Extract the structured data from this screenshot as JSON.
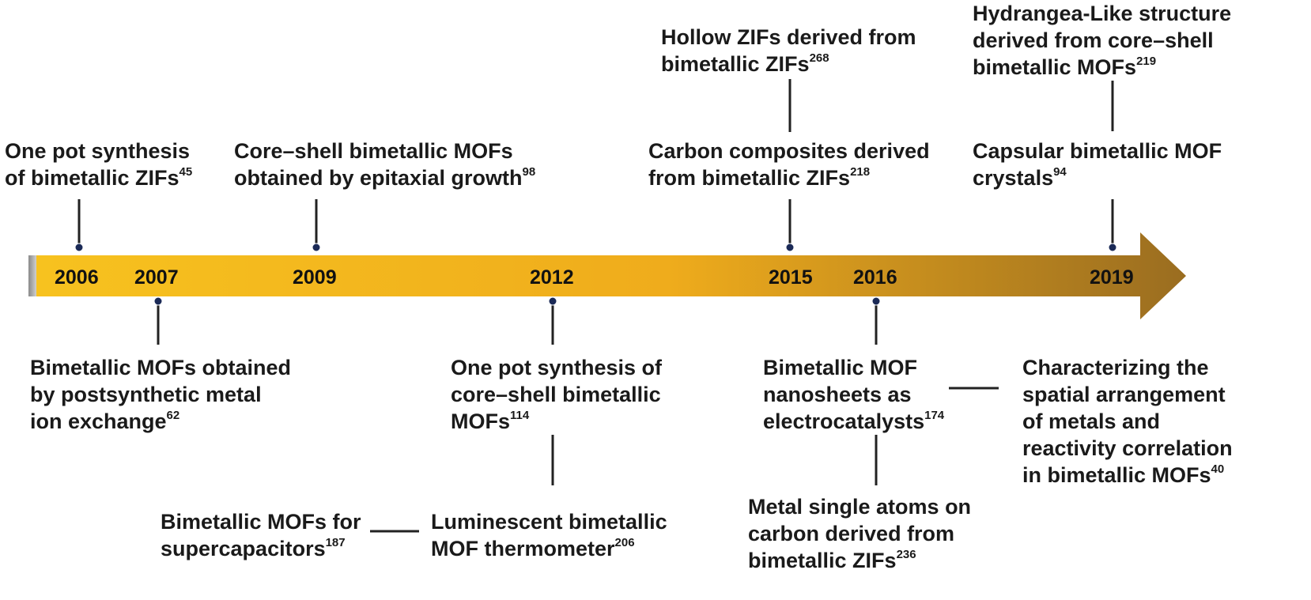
{
  "colors": {
    "arrow_start": "#f7c21f",
    "arrow_mid": "#efac1c",
    "arrow_end": "#9a6d20",
    "line": "#222222",
    "marker": "#1b2a57",
    "text": "#1a1a1a"
  },
  "years": [
    "2006",
    "2007",
    "2009",
    "2012",
    "2015",
    "2016",
    "2019"
  ],
  "events": [
    {
      "lines": [
        "One pot synthesis",
        "of bimetallic ZIFs"
      ],
      "ref": "45"
    },
    {
      "lines": [
        "Core–shell bimetallic MOFs",
        "obtained by epitaxial growth"
      ],
      "ref": "98"
    },
    {
      "lines": [
        "Hollow ZIFs derived from",
        "bimetallic ZIFs"
      ],
      "ref": "268"
    },
    {
      "lines": [
        "Carbon composites derived",
        "from bimetallic ZIFs"
      ],
      "ref": "218"
    },
    {
      "lines": [
        "Hydrangea-Like structure",
        "derived from core–shell",
        "bimetallic MOFs"
      ],
      "ref": "219"
    },
    {
      "lines": [
        "Capsular bimetallic MOF",
        "crystals"
      ],
      "ref": "94"
    },
    {
      "lines": [
        "Bimetallic MOFs obtained",
        "by postsynthetic metal",
        "ion exchange"
      ],
      "ref": "62"
    },
    {
      "lines": [
        "One pot synthesis of",
        "core–shell bimetallic",
        "MOFs"
      ],
      "ref": "114"
    },
    {
      "lines": [
        "Bimetallic MOFs for",
        "supercapacitors"
      ],
      "ref": "187"
    },
    {
      "lines": [
        "Luminescent bimetallic",
        "MOF thermometer"
      ],
      "ref": "206"
    },
    {
      "lines": [
        "Bimetallic MOF",
        "nanosheets as",
        "electrocatalysts"
      ],
      "ref": "174"
    },
    {
      "lines": [
        "Metal single atoms on",
        "carbon derived from",
        "bimetallic ZIFs"
      ],
      "ref": "236"
    },
    {
      "lines": [
        "Characterizing the",
        "spatial arrangement",
        "of metals and",
        "reactivity correlation",
        "in bimetallic MOFs"
      ],
      "ref": "40"
    }
  ]
}
